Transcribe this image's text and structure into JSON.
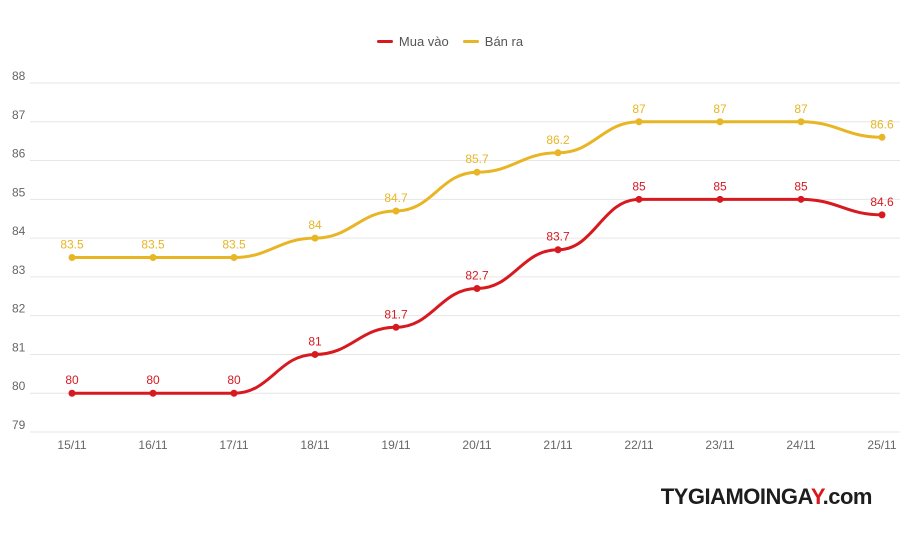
{
  "legend": {
    "buy_label": "Mua vào",
    "sell_label": "Bán ra"
  },
  "watermark": {
    "part1": "TYGIAMOINGA",
    "part2": "Y",
    "part3": ".com"
  },
  "colors": {
    "buy": "#d71920",
    "sell": "#e8b525",
    "grid": "#e6e6e6",
    "tick": "#666666"
  },
  "chart_data": {
    "type": "line",
    "categories": [
      "15/11",
      "16/11",
      "17/11",
      "18/11",
      "19/11",
      "20/11",
      "21/11",
      "22/11",
      "23/11",
      "24/11",
      "25/11"
    ],
    "series": [
      {
        "name": "Mua vào",
        "values": [
          80,
          80,
          80,
          81,
          81.7,
          82.7,
          83.7,
          85,
          85,
          85,
          84.6
        ]
      },
      {
        "name": "Bán ra",
        "values": [
          83.5,
          83.5,
          83.5,
          84,
          84.7,
          85.7,
          86.2,
          87,
          87,
          87,
          86.6
        ]
      }
    ],
    "yticks": [
      79,
      80,
      81,
      82,
      83,
      84,
      85,
      86,
      87,
      88
    ],
    "ylim": [
      79,
      88
    ],
    "grid": true,
    "legend_position": "top-center",
    "title": "",
    "xlabel": "",
    "ylabel": ""
  }
}
